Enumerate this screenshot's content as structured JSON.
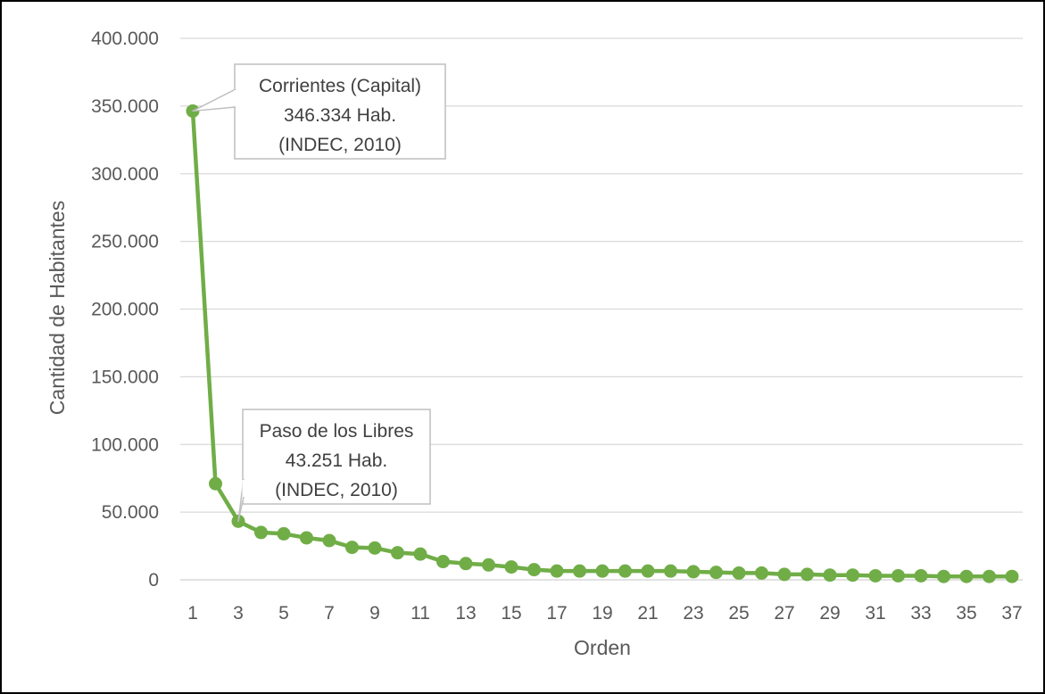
{
  "chart_data": {
    "type": "line",
    "title": "",
    "xlabel": "Orden",
    "ylabel": "Cantidad de Habitantes",
    "ylim": [
      0,
      400000
    ],
    "yticks": [
      0,
      50000,
      100000,
      150000,
      200000,
      250000,
      300000,
      350000,
      400000
    ],
    "ytick_labels": [
      "0",
      "50.000",
      "100.000",
      "150.000",
      "200.000",
      "250.000",
      "300.000",
      "350.000",
      "400.000"
    ],
    "xlim": [
      1,
      37
    ],
    "xtick_labels": [
      "1",
      "3",
      "5",
      "7",
      "9",
      "11",
      "13",
      "15",
      "17",
      "19",
      "21",
      "23",
      "25",
      "27",
      "29",
      "31",
      "33",
      "35",
      "37"
    ],
    "grid": true,
    "legend": "none",
    "color": "#70AD47",
    "series": [
      {
        "x": [
          1,
          2,
          3,
          4,
          5,
          6,
          7,
          8,
          9,
          10,
          11,
          12,
          13,
          14,
          15,
          16,
          17,
          18,
          19,
          20,
          21,
          22,
          23,
          24,
          25,
          26,
          27,
          28,
          29,
          30,
          31,
          32,
          33,
          34,
          35,
          36,
          37
        ],
        "values": [
          346334,
          71000,
          43251,
          35000,
          34000,
          31000,
          29000,
          24000,
          23500,
          20000,
          19000,
          13500,
          12000,
          11000,
          9500,
          7500,
          6500,
          6500,
          6500,
          6500,
          6500,
          6500,
          6000,
          5500,
          5000,
          5000,
          4000,
          4000,
          3500,
          3500,
          3000,
          3000,
          3000,
          2500,
          2500,
          2500,
          2500
        ]
      }
    ],
    "annotations": [
      {
        "point_index": 0,
        "lines": [
          "Corrientes (Capital)",
          "346.334 Hab.",
          "(INDEC, 2010)"
        ]
      },
      {
        "point_index": 2,
        "lines": [
          "Paso de los Libres",
          "43.251 Hab.",
          "(INDEC, 2010)"
        ]
      }
    ]
  }
}
